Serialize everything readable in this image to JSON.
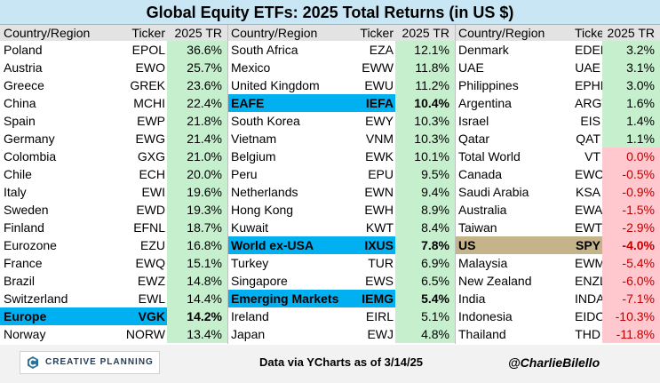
{
  "title": "Global Equity ETFs: 2025 Total Returns (in US $)",
  "headers": {
    "name": "Country/Region",
    "ticker": "Ticker",
    "ret": "2025 TR"
  },
  "footer": {
    "logo_text": "CREATIVE PLANNING",
    "source": "Data via YCharts as of 3/14/25",
    "handle": "@CharlieBilello"
  },
  "colors": {
    "highlight_blue": "#00b0f0",
    "highlight_tan": "#c5b38a",
    "positive": "#c6efce",
    "negative": "#ffc7ce"
  },
  "chart_data": {
    "type": "table",
    "title": "Global Equity ETFs: 2025 Total Returns (in US $)",
    "columns": [
      "Country/Region",
      "Ticker",
      "2025 TR"
    ],
    "groups": [
      [
        {
          "name": "Poland",
          "ticker": "EPOL",
          "ret": "36.6%",
          "value": 36.6
        },
        {
          "name": "Austria",
          "ticker": "EWO",
          "ret": "25.7%",
          "value": 25.7
        },
        {
          "name": "Greece",
          "ticker": "GREK",
          "ret": "23.6%",
          "value": 23.6
        },
        {
          "name": "China",
          "ticker": "MCHI",
          "ret": "22.4%",
          "value": 22.4
        },
        {
          "name": "Spain",
          "ticker": "EWP",
          "ret": "21.8%",
          "value": 21.8
        },
        {
          "name": "Germany",
          "ticker": "EWG",
          "ret": "21.4%",
          "value": 21.4
        },
        {
          "name": "Colombia",
          "ticker": "GXG",
          "ret": "21.0%",
          "value": 21.0
        },
        {
          "name": "Chile",
          "ticker": "ECH",
          "ret": "20.0%",
          "value": 20.0
        },
        {
          "name": "Italy",
          "ticker": "EWI",
          "ret": "19.6%",
          "value": 19.6
        },
        {
          "name": "Sweden",
          "ticker": "EWD",
          "ret": "19.3%",
          "value": 19.3
        },
        {
          "name": "Finland",
          "ticker": "EFNL",
          "ret": "18.7%",
          "value": 18.7
        },
        {
          "name": "Eurozone",
          "ticker": "EZU",
          "ret": "16.8%",
          "value": 16.8
        },
        {
          "name": "France",
          "ticker": "EWQ",
          "ret": "15.1%",
          "value": 15.1
        },
        {
          "name": "Brazil",
          "ticker": "EWZ",
          "ret": "14.8%",
          "value": 14.8
        },
        {
          "name": "Switzerland",
          "ticker": "EWL",
          "ret": "14.4%",
          "value": 14.4
        },
        {
          "name": "Europe",
          "ticker": "VGK",
          "ret": "14.2%",
          "value": 14.2,
          "highlight": "blue"
        },
        {
          "name": "Norway",
          "ticker": "NORW",
          "ret": "13.4%",
          "value": 13.4
        }
      ],
      [
        {
          "name": "South Africa",
          "ticker": "EZA",
          "ret": "12.1%",
          "value": 12.1
        },
        {
          "name": "Mexico",
          "ticker": "EWW",
          "ret": "11.8%",
          "value": 11.8
        },
        {
          "name": "United Kingdom",
          "ticker": "EWU",
          "ret": "11.2%",
          "value": 11.2
        },
        {
          "name": "EAFE",
          "ticker": "IEFA",
          "ret": "10.4%",
          "value": 10.4,
          "highlight": "blue"
        },
        {
          "name": "South Korea",
          "ticker": "EWY",
          "ret": "10.3%",
          "value": 10.3
        },
        {
          "name": "Vietnam",
          "ticker": "VNM",
          "ret": "10.3%",
          "value": 10.3
        },
        {
          "name": "Belgium",
          "ticker": "EWK",
          "ret": "10.1%",
          "value": 10.1
        },
        {
          "name": "Peru",
          "ticker": "EPU",
          "ret": "9.5%",
          "value": 9.5
        },
        {
          "name": "Netherlands",
          "ticker": "EWN",
          "ret": "9.4%",
          "value": 9.4
        },
        {
          "name": "Hong Kong",
          "ticker": "EWH",
          "ret": "8.9%",
          "value": 8.9
        },
        {
          "name": "Kuwait",
          "ticker": "KWT",
          "ret": "8.4%",
          "value": 8.4
        },
        {
          "name": "World ex-USA",
          "ticker": "IXUS",
          "ret": "7.8%",
          "value": 7.8,
          "highlight": "blue"
        },
        {
          "name": "Turkey",
          "ticker": "TUR",
          "ret": "6.9%",
          "value": 6.9
        },
        {
          "name": "Singapore",
          "ticker": "EWS",
          "ret": "6.5%",
          "value": 6.5
        },
        {
          "name": "Emerging Markets",
          "ticker": "IEMG",
          "ret": "5.4%",
          "value": 5.4,
          "highlight": "blue"
        },
        {
          "name": "Ireland",
          "ticker": "EIRL",
          "ret": "5.1%",
          "value": 5.1
        },
        {
          "name": "Japan",
          "ticker": "EWJ",
          "ret": "4.8%",
          "value": 4.8
        }
      ],
      [
        {
          "name": "Denmark",
          "ticker": "EDEN",
          "ret": "3.2%",
          "value": 3.2
        },
        {
          "name": "UAE",
          "ticker": "UAE",
          "ret": "3.1%",
          "value": 3.1
        },
        {
          "name": "Philippines",
          "ticker": "EPHE",
          "ret": "3.0%",
          "value": 3.0
        },
        {
          "name": "Argentina",
          "ticker": "ARGT",
          "ret": "1.6%",
          "value": 1.6
        },
        {
          "name": "Israel",
          "ticker": "EIS",
          "ret": "1.4%",
          "value": 1.4
        },
        {
          "name": "Qatar",
          "ticker": "QAT",
          "ret": "1.1%",
          "value": 1.1
        },
        {
          "name": "Total World",
          "ticker": "VT",
          "ret": "0.0%",
          "value": 0.0
        },
        {
          "name": "Canada",
          "ticker": "EWC",
          "ret": "-0.5%",
          "value": -0.5
        },
        {
          "name": "Saudi Arabia",
          "ticker": "KSA",
          "ret": "-0.9%",
          "value": -0.9
        },
        {
          "name": "Australia",
          "ticker": "EWA",
          "ret": "-1.5%",
          "value": -1.5
        },
        {
          "name": "Taiwan",
          "ticker": "EWT",
          "ret": "-2.9%",
          "value": -2.9
        },
        {
          "name": "US",
          "ticker": "SPY",
          "ret": "-4.0%",
          "value": -4.0,
          "highlight": "tan"
        },
        {
          "name": "Malaysia",
          "ticker": "EWM",
          "ret": "-5.4%",
          "value": -5.4
        },
        {
          "name": "New Zealand",
          "ticker": "ENZL",
          "ret": "-6.0%",
          "value": -6.0
        },
        {
          "name": "India",
          "ticker": "INDA",
          "ret": "-7.1%",
          "value": -7.1
        },
        {
          "name": "Indonesia",
          "ticker": "EIDO",
          "ret": "-10.3%",
          "value": -10.3
        },
        {
          "name": "Thailand",
          "ticker": "THD",
          "ret": "-11.8%",
          "value": -11.8
        }
      ]
    ]
  }
}
